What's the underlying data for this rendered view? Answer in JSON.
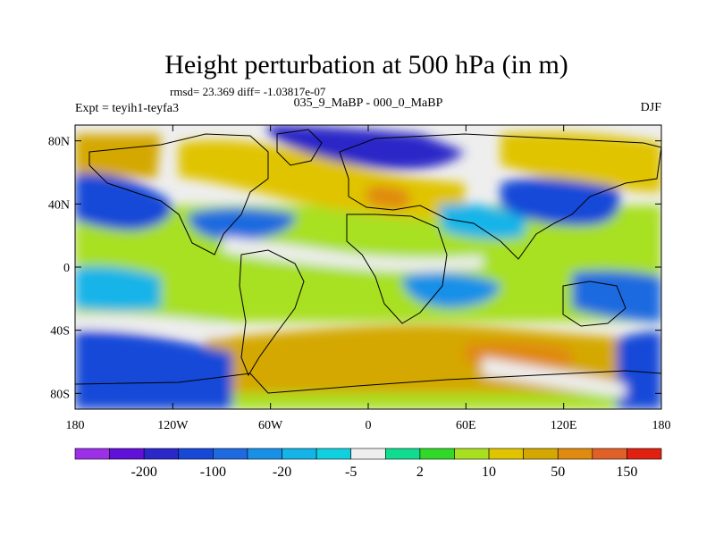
{
  "title": "Height perturbation at 500 hPa (in m)",
  "stats": "rmsd= 23.369  diff= -1.03817e-07",
  "experiment": "Expt = teyih1-teyfa3",
  "period": "035_9_MaBP - 000_0_MaBP",
  "season": "DJF",
  "map": {
    "lon_range": [
      -180,
      180
    ],
    "lat_range": [
      -90,
      90
    ],
    "x_ticks": [
      {
        "value": -180,
        "label": "180"
      },
      {
        "value": -120,
        "label": "120W"
      },
      {
        "value": -60,
        "label": "60W"
      },
      {
        "value": 0,
        "label": "0"
      },
      {
        "value": 60,
        "label": "60E"
      },
      {
        "value": 120,
        "label": "120E"
      },
      {
        "value": 180,
        "label": "180"
      }
    ],
    "y_ticks": [
      {
        "value": 80,
        "label": "80N"
      },
      {
        "value": 40,
        "label": "40N"
      },
      {
        "value": 0,
        "label": "0"
      },
      {
        "value": -40,
        "label": "40S"
      },
      {
        "value": -80,
        "label": "80S"
      }
    ]
  },
  "colorbar": {
    "colors": [
      "#9b30e8",
      "#6010d8",
      "#2a28c8",
      "#1848d8",
      "#1f6ae0",
      "#1890e8",
      "#14b4e8",
      "#10d0e0",
      "#eeeeee",
      "#10dc90",
      "#30d828",
      "#a8e020",
      "#e0c400",
      "#d4a800",
      "#e08a10",
      "#e06028",
      "#e02010"
    ],
    "labels": [
      {
        "after_index": 1,
        "text": "-200"
      },
      {
        "after_index": 3,
        "text": "-100"
      },
      {
        "after_index": 5,
        "text": "-20"
      },
      {
        "after_index": 7,
        "text": "-5"
      },
      {
        "after_index": 9,
        "text": "2"
      },
      {
        "after_index": 11,
        "text": "10"
      },
      {
        "after_index": 13,
        "text": "50"
      },
      {
        "after_index": 15,
        "text": "150"
      }
    ]
  }
}
